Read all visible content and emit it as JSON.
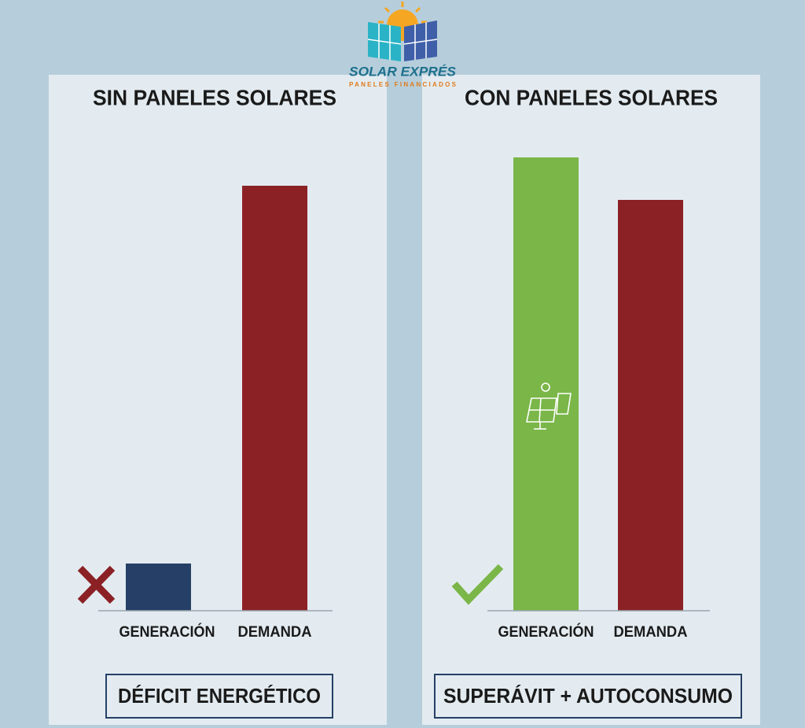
{
  "logo": {
    "name": "SOLAR EXPRÉS",
    "tagline": "PANELES FINANCIADOS"
  },
  "chart_data": [
    {
      "type": "bar",
      "title": "SIN PANELES SOLARES",
      "categories": [
        "GENERACIÓN",
        "DEMANDA"
      ],
      "values": [
        10,
        90
      ],
      "colors": [
        "#263f66",
        "#8b2125"
      ],
      "ylim": [
        0,
        100
      ],
      "footer": "DÉFICIT ENERGÉTICO"
    },
    {
      "type": "bar",
      "title": "CON PANELES SOLARES",
      "categories": [
        "GENERACIÓN",
        "DEMANDA"
      ],
      "values": [
        96,
        87
      ],
      "colors": [
        "#7ab648",
        "#8b2125"
      ],
      "ylim": [
        0,
        100
      ],
      "footer": "SUPERÁVIT + AUTOCONSUMO"
    }
  ]
}
